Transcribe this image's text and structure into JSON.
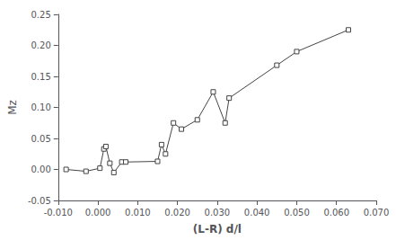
{
  "chart_data": {
    "type": "line",
    "x": [
      -0.008,
      -0.003,
      0.0005,
      0.0015,
      0.002,
      0.003,
      0.004,
      0.006,
      0.007,
      0.015,
      0.016,
      0.017,
      0.019,
      0.021,
      0.025,
      0.029,
      0.032,
      0.033,
      0.045,
      0.05,
      0.063
    ],
    "values": [
      0.0,
      -0.003,
      0.002,
      0.033,
      0.037,
      0.01,
      -0.005,
      0.012,
      0.012,
      0.013,
      0.04,
      0.025,
      0.075,
      0.065,
      0.08,
      0.125,
      0.075,
      0.115,
      0.168,
      0.19,
      0.225
    ],
    "xlabel": "(L-R) d/l",
    "ylabel": "Mz",
    "xlim": [
      -0.01,
      0.07
    ],
    "ylim": [
      -0.05,
      0.25
    ],
    "xticks": [
      {
        "value": -0.01,
        "label": "-0.010"
      },
      {
        "value": 0.0,
        "label": "0.000"
      },
      {
        "value": 0.01,
        "label": "0.010"
      },
      {
        "value": 0.02,
        "label": "0.020"
      },
      {
        "value": 0.03,
        "label": "0.030"
      },
      {
        "value": 0.04,
        "label": "0.040"
      },
      {
        "value": 0.05,
        "label": "0.050"
      },
      {
        "value": 0.06,
        "label": "0.060"
      },
      {
        "value": 0.07,
        "label": "0.070"
      }
    ],
    "yticks": [
      -0.05,
      {
        "value": 0.0,
        "label": "0.00"
      },
      0.05,
      {
        "value": 0.1,
        "label": "0.10"
      },
      0.15,
      {
        "value": 0.2,
        "label": "0.20"
      },
      0.25
    ],
    "color": "#444444",
    "marker": "square",
    "grid": false
  }
}
